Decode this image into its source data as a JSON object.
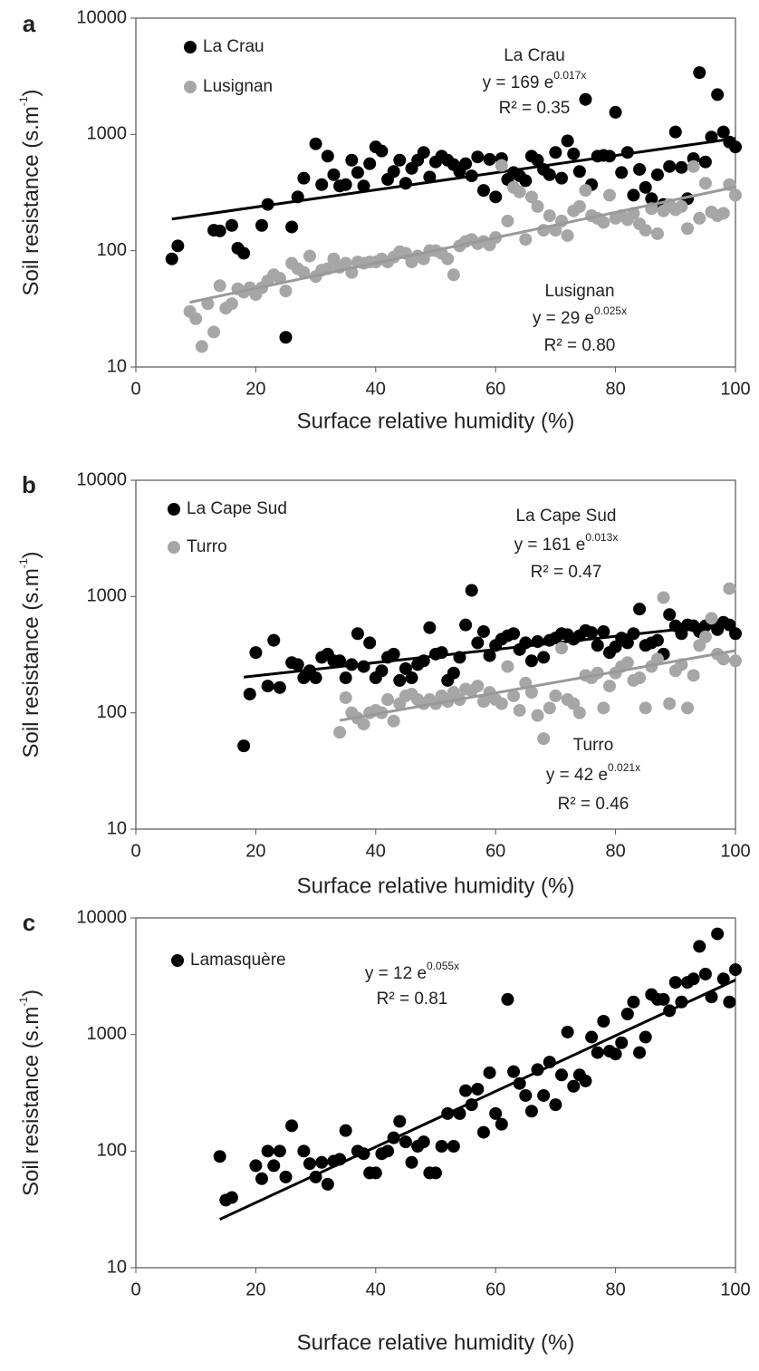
{
  "chart_data": [
    {
      "type": "scatter",
      "panel_label": "a",
      "xlabel": "Surface relative humidity (%)",
      "ylabel": "Soil resistance (s.m",
      "ylabel_sup": "-1",
      "ylabel_end": ")",
      "xlim": [
        0,
        100
      ],
      "ylim": [
        10,
        10000
      ],
      "xticks": [
        0,
        20,
        40,
        60,
        80,
        100
      ],
      "yticks": [
        10,
        100,
        1000,
        10000
      ],
      "log_scale": "y",
      "series": [
        {
          "name": "La Crau",
          "color": "#000000",
          "x": [
            6,
            7,
            13,
            14,
            16,
            17,
            18,
            21,
            22,
            25,
            26,
            27,
            28,
            30,
            31,
            32,
            33,
            34,
            35,
            36,
            37,
            38,
            39,
            40,
            41,
            42,
            43,
            44,
            45,
            46,
            47,
            48,
            49,
            50,
            51,
            52,
            53,
            54,
            55,
            56,
            57,
            58,
            59,
            60,
            61,
            62,
            63,
            64,
            65,
            66,
            67,
            68,
            69,
            70,
            71,
            72,
            73,
            74,
            75,
            76,
            77,
            78,
            79,
            80,
            81,
            82,
            83,
            84,
            85,
            86,
            87,
            88,
            89,
            90,
            91,
            92,
            93,
            94,
            95,
            96,
            97,
            98,
            99,
            100
          ],
          "values": [
            85,
            110,
            150,
            148,
            165,
            105,
            95,
            165,
            250,
            18,
            160,
            290,
            420,
            830,
            370,
            650,
            450,
            360,
            370,
            600,
            470,
            360,
            560,
            780,
            720,
            410,
            480,
            600,
            380,
            510,
            600,
            700,
            430,
            580,
            650,
            600,
            550,
            480,
            560,
            440,
            640,
            330,
            610,
            290,
            620,
            410,
            470,
            440,
            400,
            650,
            600,
            500,
            450,
            700,
            420,
            880,
            680,
            480,
            2000,
            370,
            650,
            660,
            650,
            1550,
            470,
            700,
            300,
            500,
            350,
            280,
            450,
            250,
            530,
            1050,
            520,
            280,
            620,
            3400,
            580,
            950,
            2200,
            1050,
            860,
            780
          ],
          "trendline": {
            "x": [
              6,
              100
            ],
            "y": [
              187,
              925
            ]
          },
          "annotation": {
            "title": "La Crau",
            "equation": "y = 169 e",
            "exponent": "0.017x",
            "r2": "R² = 0.35"
          }
        },
        {
          "name": "Lusignan",
          "color": "#a6a6a6",
          "x": [
            9,
            10,
            11,
            12,
            13,
            14,
            15,
            16,
            17,
            18,
            19,
            20,
            21,
            22,
            23,
            24,
            25,
            26,
            27,
            28,
            29,
            30,
            31,
            32,
            33,
            34,
            35,
            36,
            37,
            38,
            39,
            40,
            41,
            42,
            43,
            44,
            45,
            46,
            47,
            48,
            49,
            50,
            51,
            52,
            53,
            54,
            55,
            56,
            57,
            58,
            59,
            60,
            61,
            62,
            63,
            64,
            65,
            66,
            67,
            68,
            69,
            70,
            71,
            72,
            73,
            74,
            75,
            76,
            77,
            78,
            79,
            80,
            81,
            82,
            83,
            84,
            85,
            86,
            87,
            88,
            89,
            90,
            91,
            92,
            93,
            94,
            95,
            96,
            97,
            98,
            99,
            100
          ],
          "values": [
            30,
            26,
            15,
            35,
            20,
            50,
            32,
            35,
            47,
            44,
            48,
            42,
            48,
            55,
            62,
            58,
            45,
            78,
            70,
            65,
            90,
            60,
            68,
            70,
            85,
            72,
            78,
            65,
            80,
            78,
            80,
            80,
            85,
            80,
            88,
            98,
            95,
            80,
            90,
            85,
            100,
            100,
            95,
            85,
            62,
            110,
            120,
            125,
            115,
            120,
            112,
            130,
            540,
            180,
            350,
            320,
            125,
            290,
            240,
            150,
            200,
            150,
            180,
            135,
            220,
            240,
            330,
            200,
            190,
            175,
            300,
            190,
            200,
            185,
            210,
            170,
            150,
            230,
            140,
            220,
            250,
            225,
            240,
            155,
            530,
            190,
            380,
            215,
            200,
            210,
            370,
            300
          ],
          "trendline": {
            "x": [
              9,
              100
            ],
            "y": [
              36,
              353
            ]
          },
          "annotation": {
            "title": "Lusignan",
            "equation": "y = 29 e",
            "exponent": "0.025x",
            "r2": "R² = 0.80"
          }
        }
      ]
    },
    {
      "type": "scatter",
      "panel_label": "b",
      "xlabel": "Surface relative humidity (%)",
      "ylabel": "Soil resistance (s.m",
      "ylabel_sup": "-1",
      "ylabel_end": ")",
      "xlim": [
        0,
        100
      ],
      "ylim": [
        10,
        10000
      ],
      "xticks": [
        0,
        20,
        40,
        60,
        80,
        100
      ],
      "yticks": [
        10,
        100,
        1000,
        10000
      ],
      "log_scale": "y",
      "series": [
        {
          "name": "La Cape Sud",
          "color": "#000000",
          "x": [
            18,
            19,
            20,
            22,
            23,
            24,
            26,
            27,
            28,
            29,
            30,
            31,
            32,
            33,
            34,
            35,
            36,
            37,
            38,
            39,
            40,
            41,
            42,
            43,
            44,
            45,
            46,
            47,
            48,
            49,
            50,
            51,
            52,
            53,
            54,
            55,
            56,
            57,
            58,
            59,
            60,
            61,
            62,
            63,
            64,
            65,
            66,
            67,
            68,
            69,
            70,
            71,
            72,
            73,
            74,
            75,
            76,
            77,
            78,
            79,
            80,
            81,
            82,
            83,
            84,
            85,
            86,
            87,
            88,
            89,
            90,
            91,
            92,
            93,
            94,
            95,
            96,
            97,
            98,
            99,
            100
          ],
          "values": [
            52,
            145,
            330,
            170,
            420,
            165,
            270,
            260,
            200,
            230,
            200,
            300,
            320,
            280,
            280,
            200,
            260,
            480,
            250,
            400,
            200,
            230,
            300,
            320,
            190,
            240,
            200,
            260,
            280,
            540,
            320,
            330,
            190,
            220,
            300,
            570,
            1130,
            400,
            500,
            310,
            380,
            430,
            460,
            480,
            350,
            400,
            280,
            410,
            300,
            420,
            440,
            480,
            470,
            430,
            460,
            510,
            490,
            380,
            500,
            330,
            370,
            440,
            400,
            480,
            780,
            380,
            400,
            420,
            320,
            700,
            560,
            480,
            570,
            560,
            500,
            560,
            600,
            520,
            600,
            570,
            480
          ],
          "trendline": {
            "x": [
              18,
              100
            ],
            "y": [
              203,
              591
            ]
          },
          "annotation": {
            "title": "La Cape Sud",
            "equation": "y = 161 e",
            "exponent": "0.013x",
            "r2": "R² = 0.47"
          }
        },
        {
          "name": "Turro",
          "color": "#a6a6a6",
          "x": [
            34,
            35,
            36,
            37,
            38,
            39,
            40,
            41,
            42,
            43,
            44,
            45,
            46,
            47,
            48,
            49,
            50,
            51,
            52,
            53,
            54,
            55,
            56,
            57,
            58,
            59,
            60,
            61,
            62,
            63,
            64,
            65,
            66,
            67,
            68,
            69,
            70,
            71,
            72,
            73,
            74,
            75,
            76,
            77,
            78,
            79,
            80,
            81,
            82,
            83,
            84,
            85,
            86,
            87,
            88,
            89,
            90,
            91,
            92,
            93,
            94,
            95,
            96,
            97,
            98,
            99,
            100
          ],
          "values": [
            68,
            135,
            100,
            90,
            80,
            100,
            105,
            100,
            130,
            85,
            120,
            140,
            145,
            130,
            120,
            130,
            120,
            140,
            125,
            150,
            130,
            160,
            155,
            170,
            125,
            150,
            130,
            120,
            250,
            140,
            105,
            180,
            150,
            95,
            60,
            110,
            140,
            360,
            130,
            120,
            100,
            210,
            200,
            220,
            110,
            170,
            220,
            250,
            270,
            190,
            200,
            110,
            250,
            290,
            980,
            120,
            230,
            260,
            110,
            210,
            380,
            450,
            650,
            320,
            290,
            1170,
            280
          ],
          "trendline": {
            "x": [
              34,
              100
            ],
            "y": [
              86,
              343
            ]
          },
          "annotation": {
            "title": "Turro",
            "equation": "y = 42 e",
            "exponent": "0.021x",
            "r2": "R² = 0.46"
          }
        }
      ]
    },
    {
      "type": "scatter",
      "panel_label": "c",
      "xlabel": "Surface relative humidity (%)",
      "ylabel": "Soil resistance (s.m",
      "ylabel_sup": "-1",
      "ylabel_end": ")",
      "xlim": [
        0,
        100
      ],
      "ylim": [
        10,
        10000
      ],
      "xticks": [
        0,
        20,
        40,
        60,
        80,
        100
      ],
      "yticks": [
        10,
        100,
        1000,
        10000
      ],
      "log_scale": "y",
      "series": [
        {
          "name": "Lamasquère",
          "color": "#000000",
          "x": [
            14,
            15,
            16,
            20,
            21,
            22,
            23,
            24,
            25,
            26,
            28,
            29,
            30,
            31,
            32,
            33,
            34,
            35,
            37,
            38,
            39,
            40,
            41,
            42,
            43,
            44,
            45,
            46,
            47,
            48,
            49,
            50,
            51,
            52,
            53,
            54,
            55,
            56,
            57,
            58,
            59,
            60,
            61,
            62,
            63,
            64,
            65,
            66,
            67,
            68,
            69,
            70,
            71,
            72,
            73,
            74,
            75,
            76,
            77,
            78,
            79,
            80,
            81,
            82,
            83,
            84,
            85,
            86,
            87,
            88,
            89,
            90,
            91,
            92,
            93,
            94,
            95,
            96,
            97,
            98,
            99,
            100
          ],
          "values": [
            90,
            38,
            40,
            75,
            58,
            100,
            75,
            100,
            60,
            165,
            100,
            78,
            60,
            80,
            52,
            82,
            85,
            150,
            100,
            95,
            65,
            65,
            95,
            100,
            130,
            180,
            120,
            80,
            110,
            120,
            65,
            65,
            110,
            210,
            110,
            210,
            330,
            250,
            340,
            145,
            470,
            210,
            170,
            2000,
            480,
            380,
            300,
            220,
            500,
            300,
            580,
            250,
            450,
            1050,
            360,
            450,
            400,
            950,
            700,
            1300,
            720,
            680,
            850,
            1500,
            1900,
            700,
            950,
            2200,
            2000,
            2000,
            1600,
            2800,
            1900,
            2800,
            3000,
            5700,
            3300,
            2100,
            7300,
            3000,
            1900,
            3600
          ],
          "trendline": {
            "x": [
              14,
              100
            ],
            "y": [
              26,
              2935
            ]
          },
          "annotation": {
            "equation": "y = 12 e",
            "exponent": "0.055x",
            "r2": "R² = 0.81"
          }
        }
      ]
    }
  ]
}
